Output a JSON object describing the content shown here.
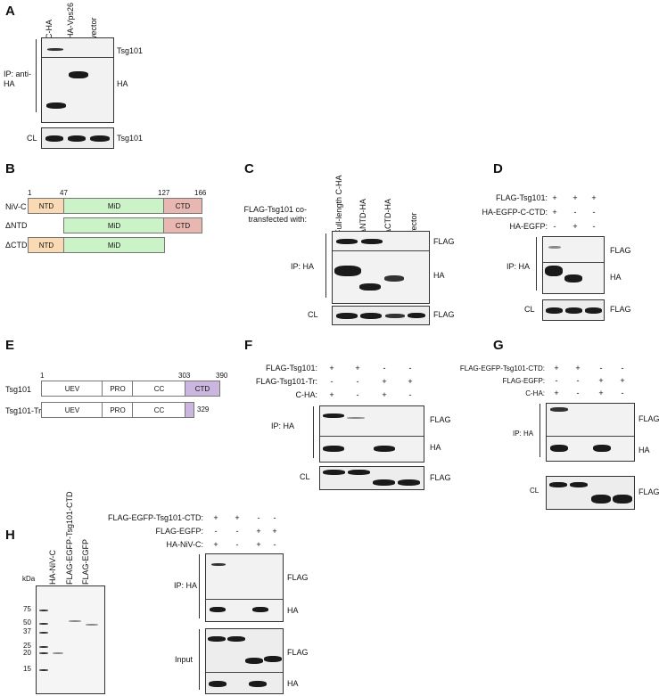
{
  "panels": {
    "A": {
      "letter": "A",
      "lanes": [
        "C-HA",
        "HA-Vps26",
        "vector"
      ],
      "ip_label": "IP: anti-\nHA",
      "cl_label": "CL",
      "rows": [
        "Tsg101",
        "HA",
        "Tsg101"
      ]
    },
    "B": {
      "letter": "B",
      "constructs": [
        {
          "name": "NiV-C",
          "domains": [
            "NTD",
            "MiD",
            "CTD"
          ]
        },
        {
          "name": "ΔNTD",
          "domains": [
            "MiD",
            "CTD"
          ]
        },
        {
          "name": "ΔCTD",
          "domains": [
            "NTD",
            "MiD"
          ]
        }
      ],
      "positions": [
        "1",
        "47",
        "127",
        "166"
      ]
    },
    "C": {
      "letter": "C",
      "header": "FLAG-Tsg101 co-\ntransfected with:",
      "lanes": [
        "Full-length C-HA",
        "ΔNTD-HA",
        "ΔCTD-HA",
        "vector"
      ],
      "ip_label": "IP: HA",
      "cl_label": "CL",
      "rows": [
        "FLAG",
        "HA",
        "FLAG"
      ]
    },
    "D": {
      "letter": "D",
      "conditions": [
        {
          "label": "FLAG-Tsg101:",
          "signs": [
            "+",
            "+",
            "+"
          ]
        },
        {
          "label": "HA-EGFP-C-CTD:",
          "signs": [
            "+",
            "-",
            "-"
          ]
        },
        {
          "label": "HA-EGFP:",
          "signs": [
            "-",
            "+",
            "-"
          ]
        }
      ],
      "ip_label": "IP: HA",
      "cl_label": "CL",
      "rows": [
        "FLAG",
        "HA",
        "FLAG"
      ]
    },
    "E": {
      "letter": "E",
      "constructs": [
        {
          "name": "Tsg101",
          "domains": [
            "UEV",
            "PRO",
            "CC",
            "CTD"
          ]
        },
        {
          "name": "Tsg101-Tr",
          "domains": [
            "UEV",
            "PRO",
            "CC"
          ]
        }
      ],
      "positions": [
        "1",
        "303",
        "390",
        "329"
      ]
    },
    "F": {
      "letter": "F",
      "conditions": [
        {
          "label": "FLAG-Tsg101:",
          "signs": [
            "+",
            "+",
            "-",
            "-"
          ]
        },
        {
          "label": "FLAG-Tsg101-Tr:",
          "signs": [
            "-",
            "-",
            "+",
            "+"
          ]
        },
        {
          "label": "C-HA:",
          "signs": [
            "+",
            "-",
            "+",
            "-"
          ]
        }
      ],
      "ip_label": "IP: HA",
      "cl_label": "CL",
      "rows": [
        "FLAG",
        "HA",
        "FLAG"
      ]
    },
    "G": {
      "letter": "G",
      "conditions": [
        {
          "label": "FLAG-EGFP-Tsg101-CTD:",
          "signs": [
            "+",
            "+",
            "-",
            "-"
          ]
        },
        {
          "label": "FLAG-EGFP:",
          "signs": [
            "-",
            "-",
            "+",
            "+"
          ]
        },
        {
          "label": "C-HA:",
          "signs": [
            "+",
            "-",
            "+",
            "-"
          ]
        }
      ],
      "ip_label": "IP: HA",
      "cl_label": "CL",
      "rows": [
        "FLAG",
        "HA",
        "FLAG"
      ]
    },
    "H": {
      "letter": "H",
      "lanes": [
        "HA-NiV-C",
        "FLAG-EGFP-Tsg101-CTD",
        "FLAG-EGFP"
      ],
      "kda_label": "kDa",
      "markers": [
        "75",
        "50",
        "37",
        "25",
        "20",
        "15"
      ],
      "conditions": [
        {
          "label": "FLAG-EGFP-Tsg101-CTD:",
          "signs": [
            "+",
            "+",
            "-",
            "-"
          ]
        },
        {
          "label": "FLAG-EGFP:",
          "signs": [
            "-",
            "-",
            "+",
            "+"
          ]
        },
        {
          "label": "HA-NiV-C:",
          "signs": [
            "+",
            "-",
            "+",
            "-"
          ]
        }
      ],
      "ip_label": "IP: HA",
      "input_label": "Input",
      "rows": [
        "FLAG",
        "HA",
        "FLAG",
        "HA"
      ]
    }
  }
}
